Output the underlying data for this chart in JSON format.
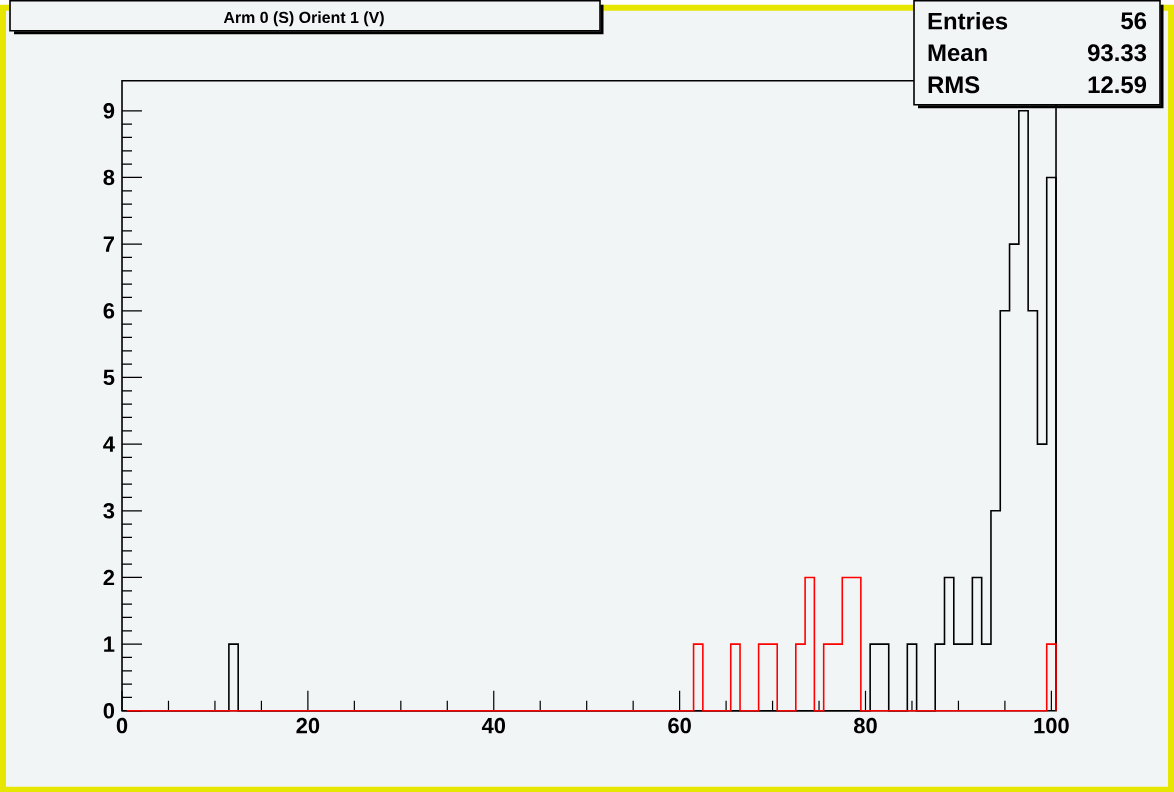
{
  "chart_data": {
    "type": "histogram",
    "title": "Arm 0 (S) Orient 1 (V)",
    "annotations": [
      "Entries",
      "56",
      "Mean",
      "93.33",
      "RMS",
      "12.59"
    ],
    "bins": [
      0.5,
      1.5,
      2.5,
      3.5,
      4.5,
      5.5,
      6.5,
      7.5,
      8.5,
      9.5,
      10.5,
      11.5,
      12.5,
      13.5,
      14.5,
      15.5,
      16.5,
      17.5,
      18.5,
      19.5,
      20.5,
      21.5,
      22.5,
      23.5,
      24.5,
      25.5,
      26.5,
      27.5,
      28.5,
      29.5,
      30.5,
      31.5,
      32.5,
      33.5,
      34.5,
      35.5,
      36.5,
      37.5,
      38.5,
      39.5,
      40.5,
      41.5,
      42.5,
      43.5,
      44.5,
      45.5,
      46.5,
      47.5,
      48.5,
      49.5,
      50.5,
      51.5,
      52.5,
      53.5,
      54.5,
      55.5,
      56.5,
      57.5,
      58.5,
      59.5,
      60.5,
      61.5,
      62.5,
      63.5,
      64.5,
      65.5,
      66.5,
      67.5,
      68.5,
      69.5,
      70.5,
      71.5,
      72.5,
      73.5,
      74.5,
      75.5,
      76.5,
      77.5,
      78.5,
      79.5,
      80.5,
      81.5,
      82.5,
      83.5,
      84.5,
      85.5,
      86.5,
      87.5,
      88.5,
      89.5,
      90.5,
      91.5,
      92.5,
      93.5,
      94.5,
      95.5,
      96.5,
      97.5,
      98.5,
      99.5,
      100.5
    ],
    "series": [
      {
        "color": "#000000",
        "values": [
          0,
          0,
          0,
          0,
          0,
          0,
          0,
          0,
          0,
          0,
          0,
          1,
          0,
          0,
          0,
          0,
          0,
          0,
          0,
          0,
          0,
          0,
          0,
          0,
          0,
          0,
          0,
          0,
          0,
          0,
          0,
          0,
          0,
          0,
          0,
          0,
          0,
          0,
          0,
          0,
          0,
          0,
          0,
          0,
          0,
          0,
          0,
          0,
          0,
          0,
          0,
          0,
          0,
          0,
          0,
          0,
          0,
          0,
          0,
          0,
          0,
          0,
          0,
          0,
          0,
          0,
          0,
          0,
          0,
          0,
          0,
          0,
          0,
          0,
          0,
          0,
          0,
          0,
          0,
          0,
          1,
          1,
          0,
          0,
          1,
          0,
          0,
          1,
          2,
          1,
          1,
          2,
          1,
          3,
          6,
          7,
          9,
          6,
          4,
          8
        ]
      },
      {
        "color": "#ff0000",
        "values": [
          0,
          0,
          0,
          0,
          0,
          0,
          0,
          0,
          0,
          0,
          0,
          0,
          0,
          0,
          0,
          0,
          0,
          0,
          0,
          0,
          0,
          0,
          0,
          0,
          0,
          0,
          0,
          0,
          0,
          0,
          0,
          0,
          0,
          0,
          0,
          0,
          0,
          0,
          0,
          0,
          0,
          0,
          0,
          0,
          0,
          0,
          0,
          0,
          0,
          0,
          0,
          0,
          0,
          0,
          0,
          0,
          0,
          0,
          0,
          0,
          0,
          1,
          0,
          0,
          0,
          1,
          0,
          0,
          1,
          1,
          0,
          0,
          1,
          2,
          0,
          1,
          1,
          2,
          2,
          0,
          0,
          0,
          0,
          0,
          0,
          0,
          0,
          0,
          0,
          0,
          0,
          0,
          0,
          0,
          0,
          0,
          0,
          0,
          0,
          1
        ]
      }
    ],
    "xlim": [
      0,
      100.5
    ],
    "ylim": [
      0,
      9.45
    ],
    "xticks": [
      0,
      20,
      40,
      60,
      80,
      100
    ],
    "yticks": [
      0,
      1,
      2,
      3,
      4,
      5,
      6,
      7,
      8,
      9
    ],
    "grid": false
  }
}
